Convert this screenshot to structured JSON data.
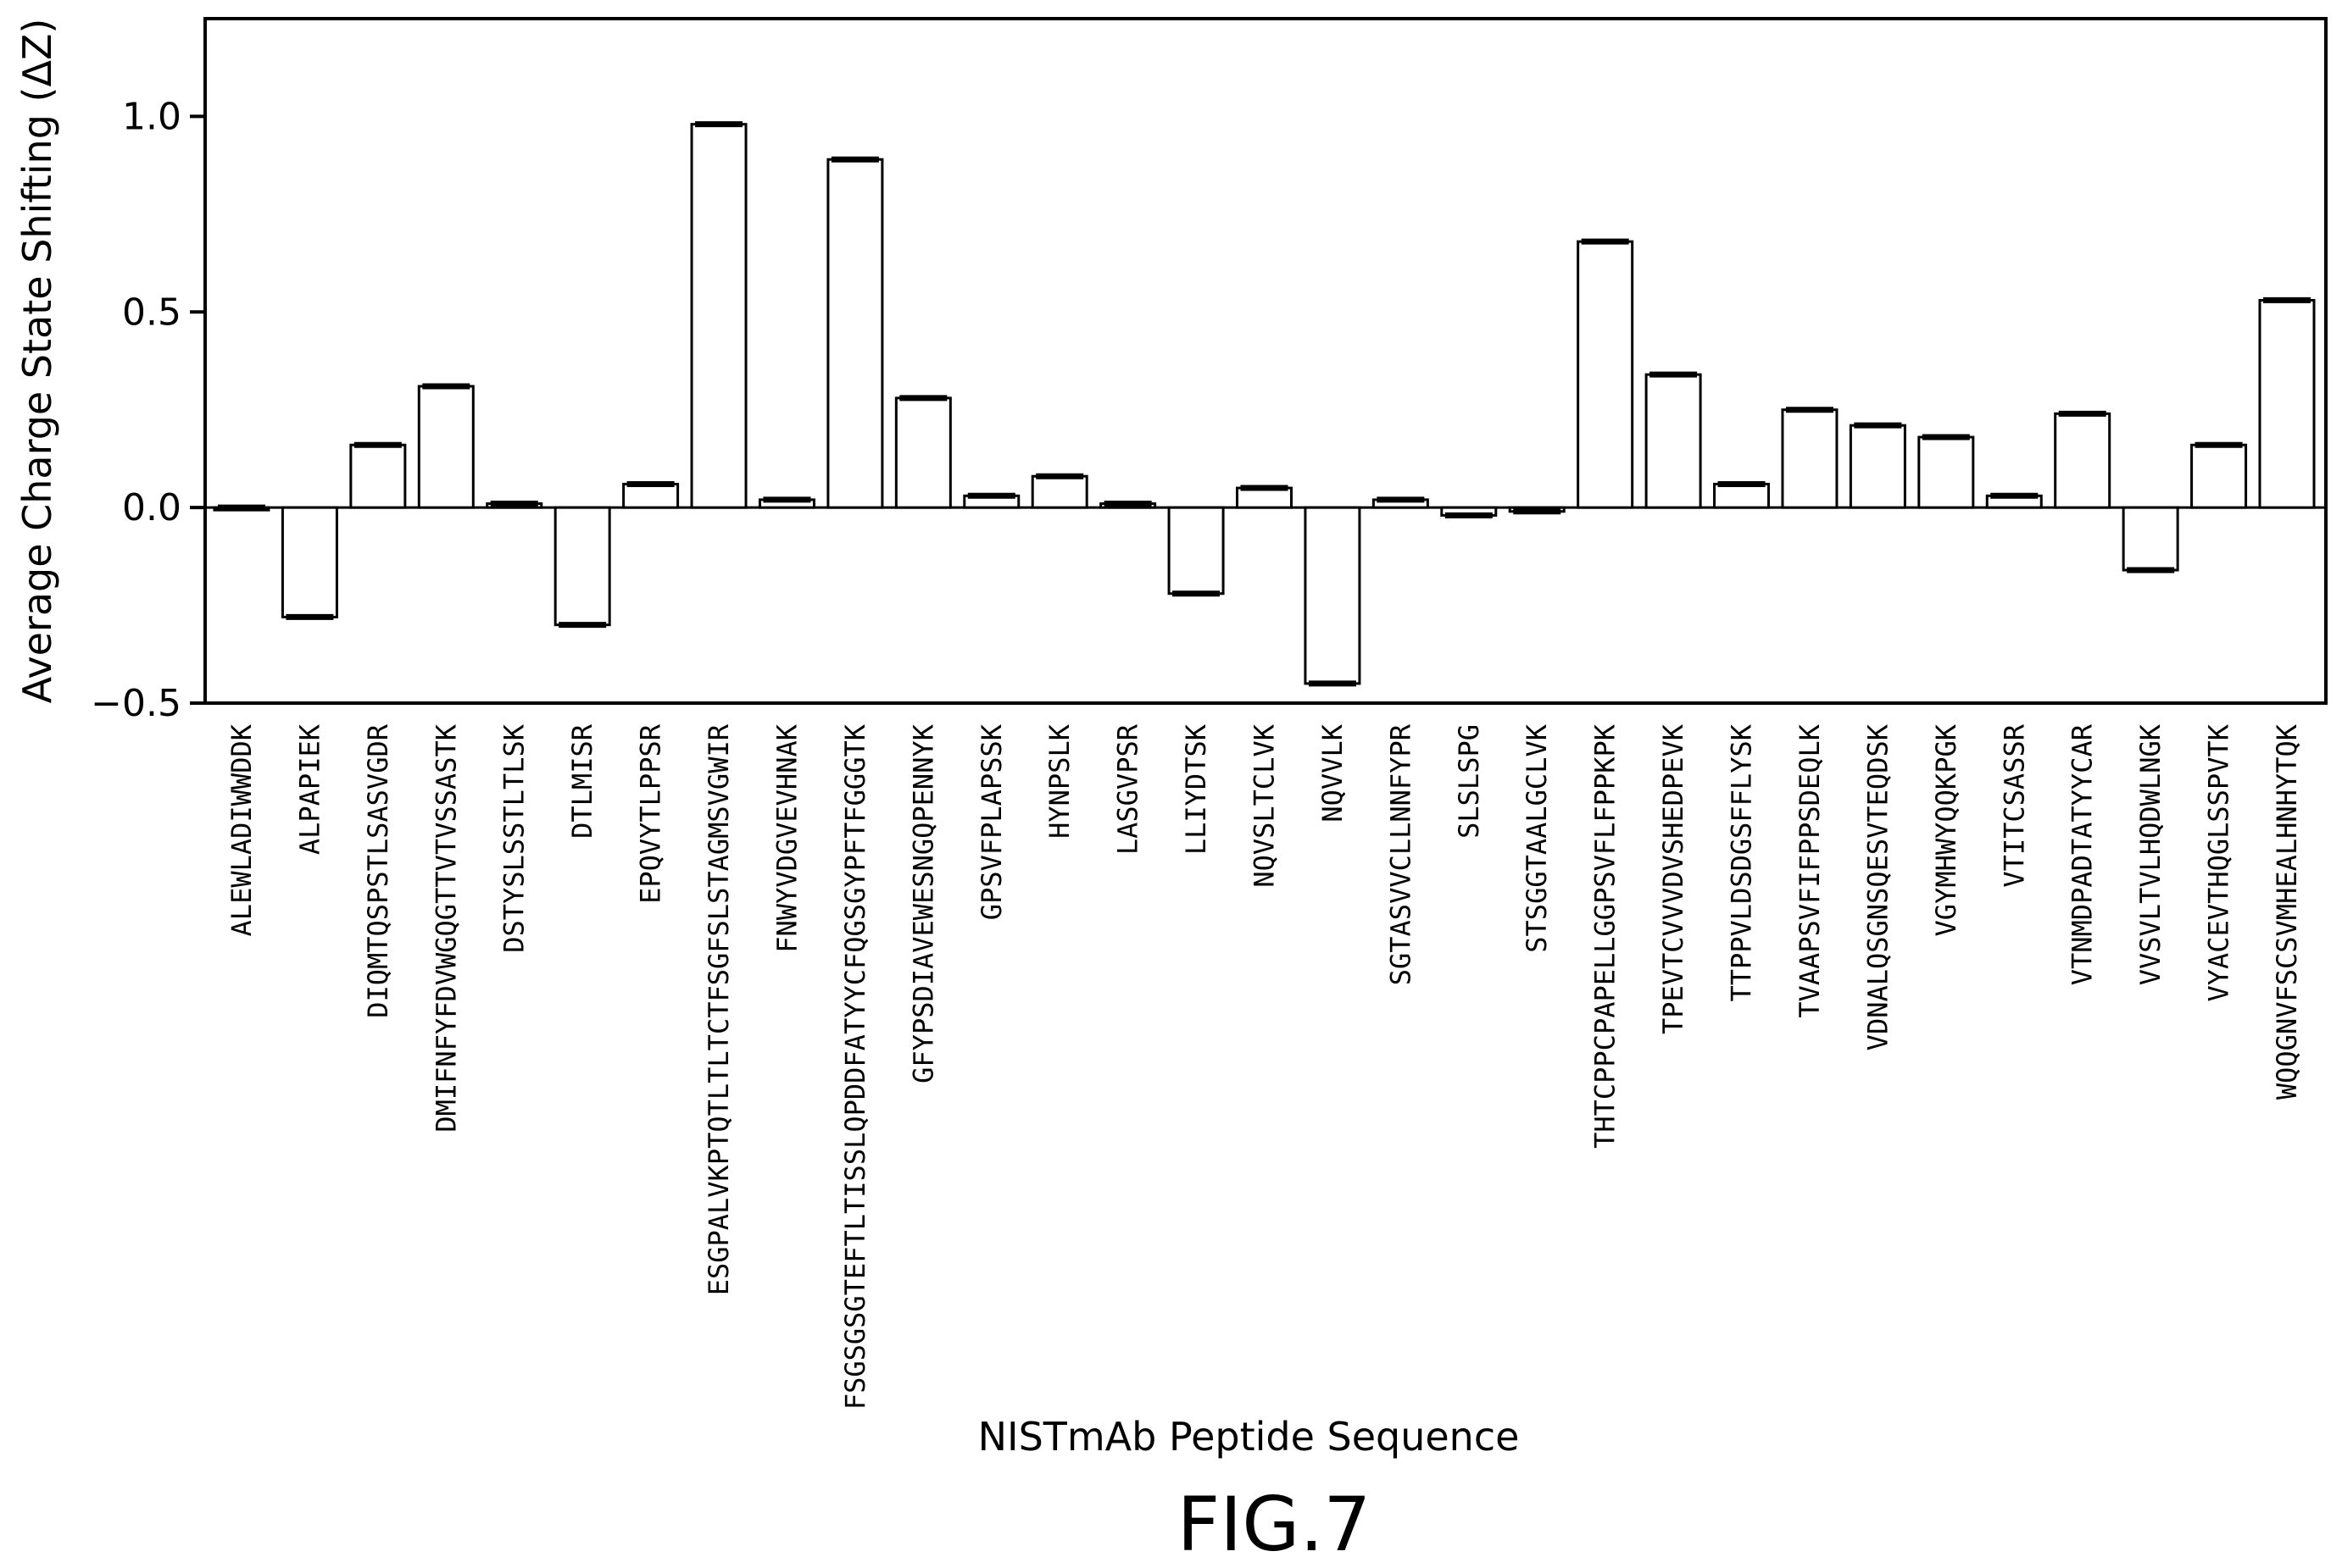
{
  "chart_data": {
    "type": "bar",
    "ylabel": "Average Charge State Shifting (ΔZ)",
    "xlabel": "NISTmAb Peptide Sequence",
    "ylim": [
      -0.5,
      1.25
    ],
    "yticks": [
      -0.5,
      0.0,
      0.5,
      1.0
    ],
    "ytick_labels": [
      "−0.5",
      "0.0",
      "0.5",
      "1.0"
    ],
    "zero_line": true,
    "grid": false,
    "categories": [
      "ALEWLADIWWDDK",
      "ALPAPIEK",
      "DIQMTQSPSTLSASVGDR",
      "DMIFNFYFDVWGQGTTVTVSSASTK",
      "DSTYSLSSTLTLSK",
      "DTLMISR",
      "EPQVYTLPPSR",
      "ESGPALVKPTQTLTLTCTFSGFSLSTAGMSVGWIR",
      "FNWYVDGVEVHNAK",
      "FSGSGSGTEFTLTISSLQPDDFATYYCFQGSGYPFTFGGGTK",
      "GFYPSDIAVEWESNGQPENNYK",
      "GPSVFPLAPSSK",
      "HYNPSLK",
      "LASGVPSR",
      "LLIYDTSK",
      "NQVSLTCLVK",
      "NQVVLK",
      "SGTASVVCLLNNFYPR",
      "SLSLSPG",
      "STSGGTAALGCLVK",
      "THTCPPCPAPELLGGPSVFLFPPKPK",
      "TPEVTCVVVDVSHEDPEVK",
      "TTPPVLDSDGSFFLYSK",
      "TVAAPSVFIFPPSDEQLK",
      "VDNALQSGNSQESVTEQDSK",
      "VGYMHWYQQKPGK",
      "VTITCSASSR",
      "VTNMDPADTATYYCAR",
      "VVSVLTVLHQDWLNGK",
      "VYACEVTHQGLSSPVTK",
      "WQQGNVFSCSVMHEALHNHYTQK"
    ],
    "values": [
      0.0,
      -0.28,
      0.16,
      0.31,
      0.01,
      -0.3,
      0.06,
      0.98,
      0.02,
      0.89,
      0.28,
      0.03,
      0.08,
      0.01,
      -0.22,
      0.05,
      -0.45,
      0.02,
      -0.02,
      -0.01,
      0.68,
      0.34,
      0.06,
      0.25,
      0.21,
      0.18,
      0.03,
      0.24,
      -0.16,
      0.16,
      0.53
    ]
  },
  "caption": "FIG.7"
}
